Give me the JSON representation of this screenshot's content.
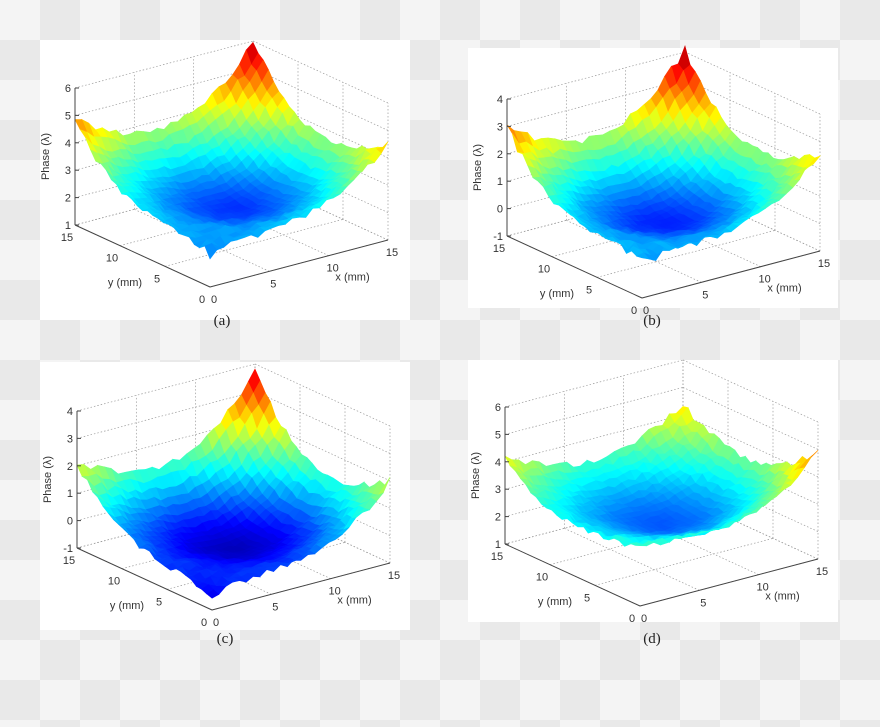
{
  "chart_data": [
    {
      "type": "surface3d",
      "label": "(a)",
      "xlabel": "x (mm)",
      "ylabel": "y (mm)",
      "zlabel": "Phase (λ)",
      "xlim": [
        0,
        15
      ],
      "ylim": [
        0,
        15
      ],
      "zlim": [
        1,
        6
      ],
      "xticks": [
        0,
        5,
        10,
        15
      ],
      "yticks": [
        0,
        5,
        10,
        15
      ],
      "zticks": [
        1,
        2,
        3,
        4,
        5,
        6
      ],
      "corners": {
        "x0y0": 2.2,
        "x15y0": 4.6,
        "x0y15": 4.8,
        "x15y15": 6.0
      },
      "center_min": 1.8,
      "grid": true,
      "colormap": "jet"
    },
    {
      "type": "surface3d",
      "label": "(b)",
      "xlabel": "x (mm)",
      "ylabel": "y (mm)",
      "zlabel": "Phase (λ)",
      "xlim": [
        0,
        15
      ],
      "ylim": [
        0,
        15
      ],
      "zlim": [
        -1,
        4
      ],
      "xticks": [
        0,
        5,
        10,
        15
      ],
      "yticks": [
        0,
        5,
        10,
        15
      ],
      "zticks": [
        -1,
        0,
        1,
        2,
        3,
        4
      ],
      "corners": {
        "x0y0": 0.3,
        "x15y0": 2.6,
        "x0y15": 3.0,
        "x15y15": 4.1
      },
      "center_min": -0.3,
      "grid": true,
      "colormap": "jet"
    },
    {
      "type": "surface3d",
      "label": "(c)",
      "xlabel": "x (mm)",
      "ylabel": "y (mm)",
      "zlabel": "Phase (λ)",
      "xlim": [
        0,
        15
      ],
      "ylim": [
        0,
        15
      ],
      "zlim": [
        -1,
        4
      ],
      "xticks": [
        0,
        5,
        10,
        15
      ],
      "yticks": [
        0,
        5,
        10,
        15
      ],
      "zticks": [
        -1,
        0,
        1,
        2,
        3,
        4
      ],
      "corners": {
        "x0y0": -0.5,
        "x15y0": 2.0,
        "x0y15": 2.1,
        "x15y15": 3.8
      },
      "center_min": -0.8,
      "grid": true,
      "colormap": "jet"
    },
    {
      "type": "surface3d",
      "label": "(d)",
      "xlabel": "x (mm)",
      "ylabel": "y (mm)",
      "zlabel": "Phase (λ)",
      "xlim": [
        0,
        15
      ],
      "ylim": [
        0,
        15
      ],
      "zlim": [
        1,
        6
      ],
      "xticks": [
        0,
        5,
        10,
        15
      ],
      "yticks": [
        0,
        5,
        10,
        15
      ],
      "zticks": [
        1,
        2,
        3,
        4,
        5,
        6
      ],
      "corners": {
        "x0y0": 3.2,
        "x15y0": 5.0,
        "x0y15": 4.1,
        "x15y15": 4.4
      },
      "center_min": 2.0,
      "grid": true,
      "colormap": "jet"
    }
  ]
}
